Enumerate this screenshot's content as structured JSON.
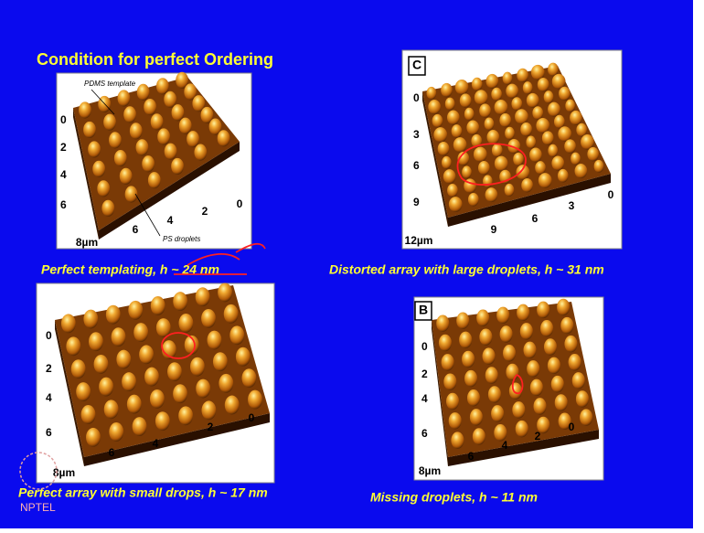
{
  "title": "Condition for perfect Ordering",
  "panels": [
    {
      "caption": "Perfect templating, h ~ 24 nm",
      "annotations": [
        "PDMS template",
        "PS droplets"
      ],
      "left_ticks": [
        "0",
        "2",
        "4",
        "6"
      ],
      "bottom_ticks": [
        "8µm",
        "6",
        "4",
        "2",
        "0"
      ]
    },
    {
      "label": "C",
      "caption": "Distorted array with large droplets, h ~ 31 nm",
      "left_ticks": [
        "0",
        "3",
        "6",
        "9"
      ],
      "bottom_ticks": [
        "12µm",
        "9",
        "6",
        "3",
        "0"
      ]
    },
    {
      "caption": "Perfect array with small drops, h ~ 17 nm",
      "left_ticks": [
        "0",
        "2",
        "4",
        "6"
      ],
      "bottom_ticks": [
        "8µm",
        "6",
        "4",
        "2",
        "0"
      ]
    },
    {
      "label": "B",
      "caption": "Missing droplets, h ~ 11 nm",
      "left_ticks": [
        "0",
        "2",
        "4",
        "6"
      ],
      "bottom_ticks": [
        "8µm",
        "6",
        "4",
        "2",
        "0"
      ]
    }
  ],
  "logo": "NPTEL"
}
